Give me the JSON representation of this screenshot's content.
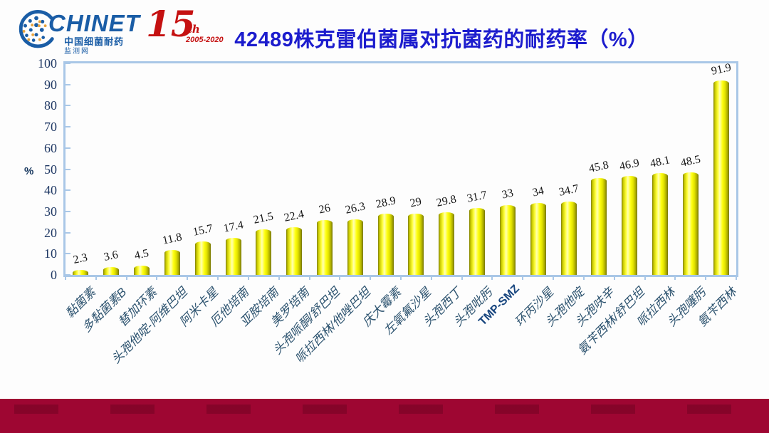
{
  "header": {
    "logo": {
      "brand": "CHINET",
      "subtitle1": "中国细菌耐药",
      "subtitle2": "监测网"
    },
    "anniversary": {
      "number": "15",
      "suffix": "th",
      "years": "2005-2020"
    },
    "title": "42489株克雷伯菌属对抗菌药的耐药率（%）"
  },
  "chart_data": {
    "type": "bar",
    "title": "42489株克雷伯菌属对抗菌药的耐药率（%）",
    "xlabel": "",
    "ylabel": "%",
    "ylim": [
      0,
      100
    ],
    "ytick_step": 10,
    "grid": false,
    "legend": "none",
    "value_labels_shown": true,
    "categories": [
      "黏菌素",
      "多黏菌素B",
      "替加环素",
      "头孢他啶-阿维巴坦",
      "阿米卡星",
      "厄他培南",
      "亚胺培南",
      "美罗培南",
      "头孢哌酮/舒巴坦",
      "哌拉西林/他唑巴坦",
      "庆大霉素",
      "左氧氟沙星",
      "头孢西丁",
      "头孢吡肟",
      "TMP-SMZ",
      "环丙沙星",
      "头孢他啶",
      "头孢呋辛",
      "氨苄西林/舒巴坦",
      "哌拉西林",
      "头孢噻肟",
      "氨苄西林"
    ],
    "values": [
      2.3,
      3.6,
      4.5,
      11.8,
      15.7,
      17.4,
      21.5,
      22.4,
      26,
      26.3,
      28.9,
      29,
      29.8,
      31.7,
      33,
      34,
      34.7,
      45.8,
      46.9,
      48.1,
      48.5,
      91.9
    ],
    "emphasized_category": "TMP-SMZ"
  },
  "colors": {
    "title_blue": "#1c1ccd",
    "bar_yellow": "#ffff00",
    "axis_border_blue": "#a9c7e7",
    "axis_text_navy": "#1f3864",
    "category_text": "#2e5470",
    "footer_maroon": "#9e0632",
    "logo_blue": "#1a5da6",
    "logo_gold": "#e8a33d",
    "anniversary_red": "#c51111"
  }
}
